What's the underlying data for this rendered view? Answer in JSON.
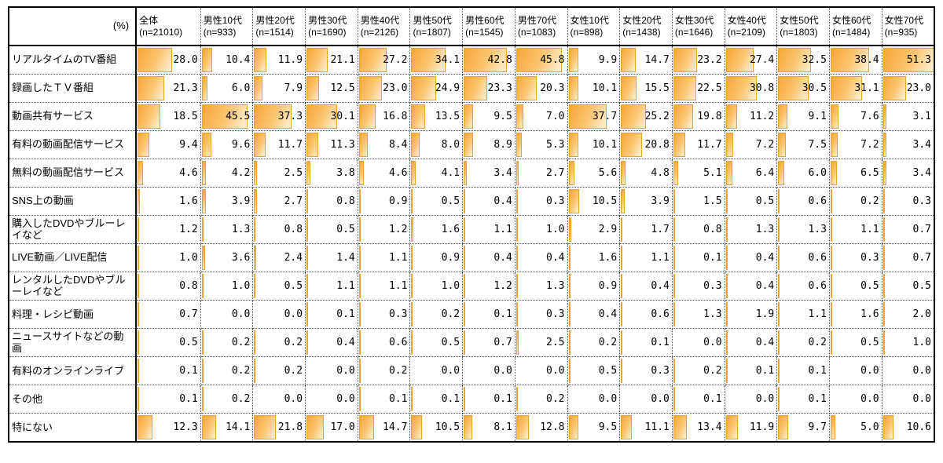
{
  "unit_label": "(%)",
  "colors": {
    "bar_border": "#F0A12B",
    "bar_fill_dark": "#F8A537",
    "bar_fill_mid": "#FBC672",
    "bar_fill_light": "#FEF2DC",
    "grid_dotted": "#555555",
    "frame": "#000000"
  },
  "chart_data": {
    "type": "table",
    "unit": "%",
    "legend_note": "horizontal orange data bars in each cell, scaled to max value",
    "bar_scale_max": 51.3,
    "columns": [
      {
        "name": "全体",
        "n": "(n=21010)"
      },
      {
        "name": "男性10代",
        "n": "(n=933)"
      },
      {
        "name": "男性20代",
        "n": "(n=1514)"
      },
      {
        "name": "男性30代",
        "n": "(n=1690)"
      },
      {
        "name": "男性40代",
        "n": "(n=2126)"
      },
      {
        "name": "男性50代",
        "n": "(n=1807)"
      },
      {
        "name": "男性60代",
        "n": "(n=1545)"
      },
      {
        "name": "男性70代",
        "n": "(n=1083)"
      },
      {
        "name": "女性10代",
        "n": "(n=898)"
      },
      {
        "name": "女性20代",
        "n": "(n=1438)"
      },
      {
        "name": "女性30代",
        "n": "(n=1646)"
      },
      {
        "name": "女性40代",
        "n": "(n=2109)"
      },
      {
        "name": "女性50代",
        "n": "(n=1803)"
      },
      {
        "name": "女性60代",
        "n": "(n=1484)"
      },
      {
        "name": "女性70代",
        "n": "(n=935)"
      }
    ],
    "rows": [
      {
        "label": "リアルタイムのTV番組",
        "values": [
          28.0,
          10.4,
          11.9,
          21.1,
          27.2,
          34.1,
          42.8,
          45.8,
          9.9,
          14.7,
          23.2,
          27.4,
          32.5,
          38.4,
          51.3
        ]
      },
      {
        "label": "録画したＴＶ番組",
        "values": [
          21.3,
          6.0,
          7.9,
          12.5,
          23.0,
          24.9,
          23.3,
          20.3,
          10.1,
          15.5,
          22.5,
          30.8,
          30.5,
          31.1,
          23.0
        ]
      },
      {
        "label": "動画共有サービス",
        "values": [
          18.5,
          45.5,
          37.3,
          30.1,
          16.8,
          13.5,
          9.5,
          7.0,
          37.7,
          25.2,
          19.8,
          11.2,
          9.1,
          7.6,
          3.1
        ]
      },
      {
        "label": "有料の動画配信サービス",
        "values": [
          9.4,
          9.6,
          11.7,
          11.3,
          8.4,
          8.0,
          8.9,
          5.3,
          10.1,
          20.8,
          11.7,
          7.2,
          7.5,
          7.2,
          3.4
        ]
      },
      {
        "label": "無料の動画配信サービス",
        "values": [
          4.6,
          4.2,
          2.5,
          3.8,
          4.6,
          4.1,
          3.4,
          2.7,
          5.6,
          4.8,
          5.1,
          6.4,
          6.0,
          6.5,
          3.4
        ]
      },
      {
        "label": "SNS上の動画",
        "values": [
          1.6,
          3.9,
          2.7,
          0.8,
          0.9,
          0.5,
          0.4,
          0.3,
          10.5,
          3.9,
          1.5,
          0.5,
          0.6,
          0.2,
          0.3
        ]
      },
      {
        "label": "購入したDVDやブルーレイなど",
        "values": [
          1.2,
          1.3,
          0.8,
          0.5,
          1.2,
          1.6,
          1.1,
          1.0,
          2.9,
          1.7,
          0.8,
          1.3,
          1.3,
          1.1,
          0.7
        ]
      },
      {
        "label": "LIVE動画／LIVE配信",
        "values": [
          1.0,
          3.6,
          2.4,
          1.4,
          1.1,
          0.9,
          0.4,
          0.4,
          1.6,
          1.1,
          0.1,
          0.4,
          0.6,
          0.3,
          0.7
        ]
      },
      {
        "label": "レンタルしたDVDやブルーレイなど",
        "values": [
          0.8,
          1.0,
          0.5,
          1.1,
          1.1,
          1.0,
          1.2,
          1.3,
          0.9,
          0.4,
          0.3,
          0.4,
          0.6,
          0.5,
          0.5
        ]
      },
      {
        "label": "料理・レシピ動画",
        "values": [
          0.7,
          0.0,
          0.0,
          0.1,
          0.3,
          0.2,
          0.1,
          0.3,
          0.4,
          0.6,
          1.3,
          1.9,
          1.1,
          1.6,
          2.0
        ]
      },
      {
        "label": "ニュースサイトなどの動画",
        "values": [
          0.5,
          0.2,
          0.2,
          0.4,
          0.6,
          0.5,
          0.7,
          2.5,
          0.2,
          0.1,
          0.0,
          0.4,
          0.2,
          0.5,
          1.0
        ]
      },
      {
        "label": "有料のオンラインライブ",
        "values": [
          0.1,
          0.2,
          0.2,
          0.0,
          0.2,
          0.0,
          0.0,
          0.0,
          0.5,
          0.3,
          0.2,
          0.1,
          0.1,
          0.0,
          0.0
        ]
      },
      {
        "label": "その他",
        "values": [
          0.1,
          0.2,
          0.0,
          0.0,
          0.1,
          0.1,
          0.1,
          0.2,
          0.0,
          0.0,
          0.1,
          0.0,
          0.1,
          0.0,
          0.0
        ]
      },
      {
        "label": "特にない",
        "values": [
          12.3,
          14.1,
          21.8,
          17.0,
          14.7,
          10.5,
          8.1,
          12.8,
          9.5,
          11.1,
          13.4,
          11.9,
          9.7,
          5.0,
          10.6
        ]
      }
    ]
  }
}
